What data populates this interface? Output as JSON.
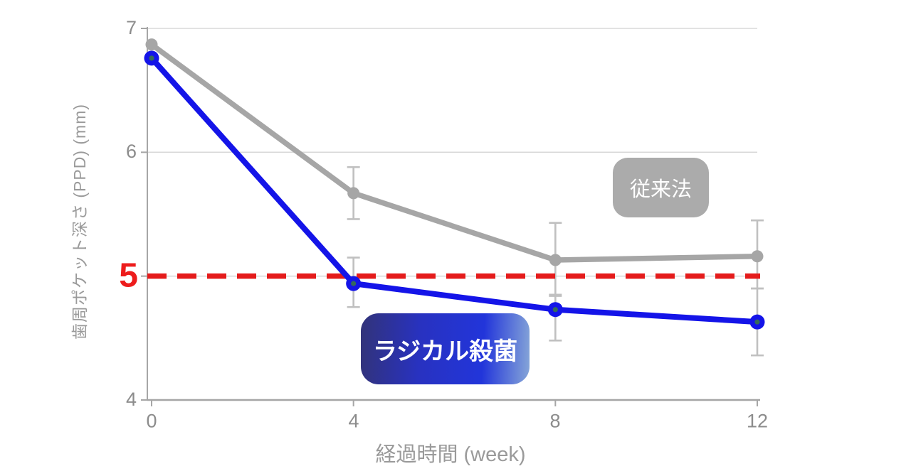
{
  "chart_data": {
    "type": "line",
    "title": "",
    "x": [
      0,
      4,
      8,
      12
    ],
    "x_tick_labels": [
      "0",
      "4",
      "8",
      "12"
    ],
    "xlabel": "経過時間 (week)",
    "ylabel": "歯周ポケット深さ (PPD)  (mm)",
    "ylim": [
      4,
      7
    ],
    "yticks": [
      7,
      6,
      5,
      4
    ],
    "y_tick_labels": [
      "7",
      "6",
      "4"
    ],
    "grid": "horizontal",
    "legend_position": "inline-annotation-boxes",
    "series": [
      {
        "name": "従来法",
        "color": "#a6a6a6",
        "marker": "circle",
        "values": [
          6.87,
          5.67,
          5.13,
          5.16
        ],
        "error_plus": [
          0,
          0.21,
          0.3,
          0.29
        ],
        "error_minus": [
          0,
          0.21,
          0.29,
          0.26
        ]
      },
      {
        "name": "ラジカル殺菌",
        "color": "#1414e8",
        "marker": "circle-dot",
        "values": [
          6.76,
          4.94,
          4.73,
          4.63
        ],
        "error_plus": [
          0,
          0.21,
          0.12,
          0.27
        ],
        "error_minus": [
          0,
          0.19,
          0.25,
          0.27
        ]
      }
    ],
    "reference_line": {
      "value": 5,
      "label": "5",
      "color": "#e41b1b",
      "style": "dashed"
    }
  },
  "axes": {
    "y_ticks": [
      "7",
      "6",
      "4"
    ],
    "x_ticks": [
      "0",
      "4",
      "8",
      "12"
    ]
  },
  "annotations": {
    "conventional_label": "従来法",
    "radical_label": "ラジカル殺菌"
  },
  "colors": {
    "series_conventional": "#a6a6a6",
    "series_radical": "#1414e8",
    "reference": "#e41b1b",
    "threshold_text": "#ed1c1c",
    "grid": "#d9d9d9",
    "axis": "#a6a6a6",
    "error_bar": "#c0c0c0",
    "tick_text": "#8c8c8c",
    "axis_title_text": "#9a9a9a",
    "label_box_gray": "#ababab",
    "label_box_blue_gradient": [
      "#323379",
      "#2832c0",
      "#2235da",
      "#86a6d8"
    ],
    "marker_inner_dot": "#35695c"
  }
}
